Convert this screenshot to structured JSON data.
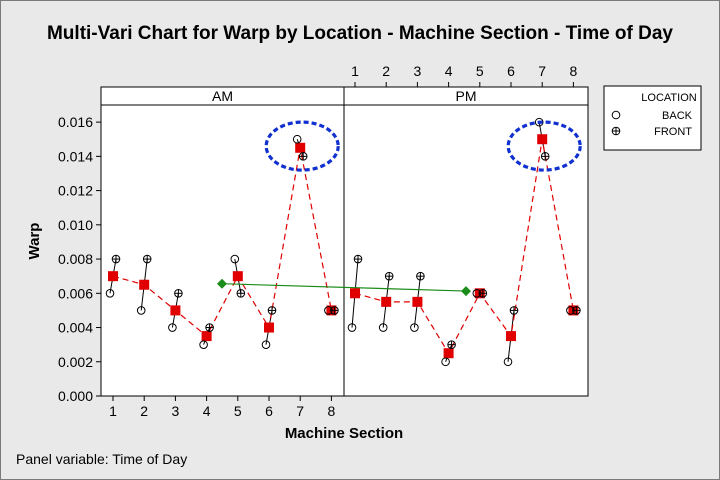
{
  "chart_data": {
    "type": "scatter",
    "title": "Multi-Vari Chart for Warp by Location - Machine Section - Time of Day",
    "xlabel": "Machine Section",
    "ylabel": "Warp",
    "ylim": [
      0,
      0.017
    ],
    "yticks": [
      "0.000",
      "0.002",
      "0.004",
      "0.006",
      "0.008",
      "0.010",
      "0.012",
      "0.014",
      "0.016"
    ],
    "x_tick_labels": [
      "1",
      "2",
      "3",
      "4",
      "5",
      "6",
      "7",
      "8"
    ],
    "panel_variable": "Time of Day",
    "panels": [
      "AM",
      "PM"
    ],
    "legend": {
      "title": "LOCATION",
      "entries": [
        "BACK",
        "FRONT"
      ],
      "placement": "right"
    },
    "colors": {
      "section_means": "#e00000",
      "panel_means": "#1a8c1a",
      "highlight": "#1030d0",
      "points": "#000000"
    },
    "series": [
      {
        "name": "BACK",
        "panel": "AM",
        "x": [
          1,
          2,
          3,
          4,
          5,
          6,
          7,
          8
        ],
        "y": [
          0.006,
          0.005,
          0.004,
          0.003,
          0.008,
          0.003,
          0.015,
          0.005
        ]
      },
      {
        "name": "FRONT",
        "panel": "AM",
        "x": [
          1,
          2,
          3,
          4,
          5,
          6,
          7,
          8
        ],
        "y": [
          0.008,
          0.008,
          0.006,
          0.004,
          0.006,
          0.005,
          0.014,
          0.005
        ]
      },
      {
        "name": "BACK",
        "panel": "PM",
        "x": [
          1,
          2,
          3,
          4,
          5,
          6,
          7,
          8
        ],
        "y": [
          0.004,
          0.004,
          0.004,
          0.002,
          0.006,
          0.002,
          0.016,
          0.005
        ]
      },
      {
        "name": "FRONT",
        "panel": "PM",
        "x": [
          1,
          2,
          3,
          4,
          5,
          6,
          7,
          8
        ],
        "y": [
          0.008,
          0.007,
          0.007,
          0.003,
          0.006,
          0.005,
          0.014,
          0.005
        ]
      }
    ],
    "section_means": {
      "AM": [
        0.007,
        0.0065,
        0.005,
        0.0035,
        0.007,
        0.004,
        0.0145,
        0.005
      ],
      "PM": [
        0.006,
        0.0055,
        0.0055,
        0.0025,
        0.006,
        0.0035,
        0.015,
        0.005
      ]
    },
    "panel_means": {
      "AM": 0.00656,
      "PM": 0.00613
    },
    "highlighted_sections": [
      {
        "panel": "AM",
        "x": 7
      },
      {
        "panel": "PM",
        "x": 7
      }
    ]
  },
  "footnote": "Panel variable: Time of Day"
}
